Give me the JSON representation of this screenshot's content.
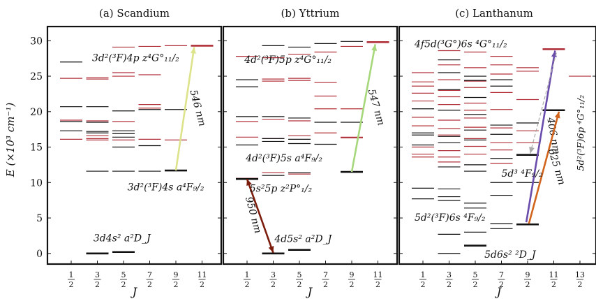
{
  "y_axis": {
    "label": "E (×10³ cm⁻¹)",
    "ticks": [
      "0",
      "5",
      "10",
      "15",
      "20",
      "25",
      "30"
    ],
    "range": [
      -1.5,
      32
    ]
  },
  "x_axis": {
    "label": "J",
    "ticks": [
      "1/2",
      "3/2",
      "5/2",
      "7/2",
      "9/2",
      "11/2",
      "13/2"
    ]
  },
  "colors": {
    "even": "#111111",
    "odd": "#b0303a"
  },
  "panels": [
    {
      "title": "(a) Scandium",
      "jcount": 6,
      "levels": {
        "black": [
          [
            1,
            27.0
          ],
          [
            1,
            20.7
          ],
          [
            3,
            20.7
          ],
          [
            5,
            20.1
          ],
          [
            7,
            20.3
          ],
          [
            9,
            20.3
          ],
          [
            1,
            18.6
          ],
          [
            3,
            18.5
          ],
          [
            1,
            17.3
          ],
          [
            3,
            17.2
          ],
          [
            3,
            17.0
          ],
          [
            5,
            17.3
          ],
          [
            5,
            16.9
          ],
          [
            5,
            16.4
          ],
          [
            5,
            15.0
          ],
          [
            7,
            15.2
          ],
          [
            3,
            11.6
          ],
          [
            5,
            11.6
          ],
          [
            7,
            11.6
          ],
          [
            9,
            11.7
          ],
          [
            3,
            0.0
          ],
          [
            5,
            0.2
          ]
        ],
        "red": [
          [
            1,
            24.7
          ],
          [
            3,
            24.8
          ],
          [
            3,
            24.6
          ],
          [
            5,
            25.5
          ],
          [
            5,
            25.0
          ],
          [
            7,
            25.2
          ],
          [
            7,
            29.2
          ],
          [
            9,
            29.3
          ],
          [
            5,
            29.1
          ],
          [
            1,
            18.8
          ],
          [
            3,
            18.7
          ],
          [
            5,
            18.6
          ],
          [
            7,
            21.0
          ],
          [
            7,
            20.5
          ],
          [
            1,
            16.1
          ],
          [
            3,
            16.2
          ],
          [
            3,
            16.0
          ],
          [
            5,
            16.0
          ],
          [
            7,
            16.1
          ],
          [
            9,
            16.0
          ],
          [
            3,
            16.6
          ]
        ],
        "bold": [
          [
            3,
            0.0
          ],
          [
            5,
            0.2
          ],
          [
            9,
            11.7
          ],
          [
            11,
            29.3
          ]
        ]
      },
      "labels": [
        {
          "text": "3d²(³F)4p  z⁴G°₁₁/₂",
          "E": 27.1,
          "J": 2.6
        },
        {
          "text": "3d²(³F)4s  a⁴F₉/₂",
          "E": 8.9,
          "J": 5.3
        },
        {
          "text": "3d4s²  a²D_J",
          "E": 1.7,
          "J": 2.7
        }
      ],
      "arrows": [
        {
          "from": [
            9.0,
            11.7
          ],
          "to": [
            10.4,
            29.1
          ],
          "color": "#dde38a",
          "label": "546 nm",
          "rotate": 75
        }
      ]
    },
    {
      "title": "(b) Yttrium",
      "jcount": 6,
      "levels": {
        "black": [
          [
            1,
            24.5
          ],
          [
            1,
            23.5
          ],
          [
            3,
            29.3
          ],
          [
            5,
            29.1
          ],
          [
            7,
            29.6
          ],
          [
            9,
            29.9
          ],
          [
            1,
            19.3
          ],
          [
            3,
            19.3
          ],
          [
            5,
            19.1
          ],
          [
            7,
            18.5
          ],
          [
            9,
            18.5
          ],
          [
            1,
            15.3
          ],
          [
            3,
            15.8
          ],
          [
            3,
            16.2
          ],
          [
            5,
            16.1
          ],
          [
            5,
            15.5
          ],
          [
            7,
            15.4
          ],
          [
            5,
            11.4
          ],
          [
            3,
            11.0
          ],
          [
            1,
            10.5
          ],
          [
            3,
            0.0
          ],
          [
            5,
            0.5
          ],
          [
            9,
            11.5
          ]
        ],
        "red": [
          [
            1,
            27.8
          ],
          [
            3,
            27.6
          ],
          [
            5,
            28.1
          ],
          [
            7,
            28.4
          ],
          [
            9,
            29.2
          ],
          [
            3,
            24.6
          ],
          [
            3,
            24.3
          ],
          [
            5,
            24.7
          ],
          [
            5,
            24.4
          ],
          [
            7,
            24.1
          ],
          [
            7,
            22.2
          ],
          [
            1,
            18.6
          ],
          [
            3,
            18.9
          ],
          [
            5,
            18.7
          ],
          [
            7,
            20.4
          ],
          [
            9,
            20.4
          ],
          [
            1,
            16.4
          ],
          [
            3,
            16.2
          ],
          [
            5,
            16.6
          ],
          [
            7,
            17.0
          ],
          [
            9,
            16.4
          ],
          [
            3,
            11.4
          ],
          [
            5,
            11.2
          ],
          [
            1,
            10.6
          ],
          [
            9,
            16.3
          ]
        ],
        "bold": [
          [
            1,
            10.5
          ],
          [
            3,
            0.0
          ],
          [
            5,
            0.5
          ],
          [
            9,
            11.5
          ],
          [
            11,
            29.8
          ]
        ]
      },
      "labels": [
        {
          "text": "4d²(³F)5p  z⁴G°₁₁/₂",
          "E": 26.9,
          "J": 0.8
        },
        {
          "text": "4d²(³F)5s  a⁴F₉/₂",
          "E": 13.0,
          "J": 0.9
        },
        {
          "text": "5s²5p  z²P°₁/₂",
          "E": 8.7,
          "J": 1.2
        },
        {
          "text": "4d5s²  a²D_J",
          "E": 1.6,
          "J": 3.1
        }
      ],
      "arrows": [
        {
          "from": [
            9.0,
            11.5
          ],
          "to": [
            10.8,
            29.5
          ],
          "color": "#a6d87b",
          "label": "547 nm",
          "rotate": 74
        },
        {
          "from": [
            1.0,
            10.5
          ],
          "to": [
            3.0,
            0.1
          ],
          "color": "#7b1c0c",
          "label": "950 nm",
          "rotate": 75,
          "double": true
        }
      ]
    },
    {
      "title": "(c) Lanthanum",
      "jcount": 7,
      "levels": {
        "black": [
          [
            1,
            20.4
          ],
          [
            1,
            17.0
          ],
          [
            1,
            16.7
          ],
          [
            1,
            15.3
          ],
          [
            1,
            9.2
          ],
          [
            1,
            7.7
          ],
          [
            3,
            27.3
          ],
          [
            3,
            25.5
          ],
          [
            3,
            20.2
          ],
          [
            3,
            16.5
          ],
          [
            3,
            15.6
          ],
          [
            3,
            12.2
          ],
          [
            3,
            9.1
          ],
          [
            3,
            8.0
          ],
          [
            3,
            7.5
          ],
          [
            3,
            2.7
          ],
          [
            3,
            0.0
          ],
          [
            5,
            25.0
          ],
          [
            5,
            24.4
          ],
          [
            5,
            22.0
          ],
          [
            5,
            19.6
          ],
          [
            5,
            17.4
          ],
          [
            5,
            16.0
          ],
          [
            5,
            12.5
          ],
          [
            5,
            11.6
          ],
          [
            5,
            7.1
          ],
          [
            5,
            6.4
          ],
          [
            5,
            3.0
          ],
          [
            5,
            1.1
          ],
          [
            7,
            24.5
          ],
          [
            7,
            23.6
          ],
          [
            7,
            18.1
          ],
          [
            7,
            16.8
          ],
          [
            7,
            13.4
          ],
          [
            7,
            10.0
          ],
          [
            7,
            8.2
          ],
          [
            7,
            4.2
          ],
          [
            7,
            3.5
          ],
          [
            9,
            18.4
          ],
          [
            9,
            13.9
          ],
          [
            9,
            10.0
          ],
          [
            9,
            4.1
          ],
          [
            3,
            23.1
          ]
        ],
        "red": [
          [
            1,
            25.5
          ],
          [
            1,
            24.2
          ],
          [
            1,
            23.6
          ],
          [
            1,
            22.6
          ],
          [
            1,
            21.5
          ],
          [
            1,
            19.2
          ],
          [
            1,
            18.0
          ],
          [
            1,
            15.0
          ],
          [
            1,
            14.0
          ],
          [
            1,
            13.6
          ],
          [
            3,
            28.6
          ],
          [
            3,
            26.6
          ],
          [
            3,
            24.5
          ],
          [
            3,
            23.0
          ],
          [
            3,
            22.1
          ],
          [
            3,
            21.0
          ],
          [
            3,
            18.8
          ],
          [
            3,
            17.6
          ],
          [
            3,
            16.7
          ],
          [
            3,
            14.5
          ],
          [
            3,
            13.6
          ],
          [
            3,
            12.9
          ],
          [
            5,
            28.4
          ],
          [
            5,
            26.2
          ],
          [
            5,
            24.3
          ],
          [
            5,
            23.4
          ],
          [
            5,
            21.2
          ],
          [
            5,
            20.2
          ],
          [
            5,
            19.1
          ],
          [
            5,
            17.8
          ],
          [
            5,
            16.2
          ],
          [
            5,
            15.1
          ],
          [
            5,
            14.0
          ],
          [
            7,
            27.8
          ],
          [
            7,
            26.6
          ],
          [
            7,
            25.3
          ],
          [
            7,
            22.7
          ],
          [
            7,
            20.3
          ],
          [
            7,
            17.7
          ],
          [
            7,
            15.6
          ],
          [
            7,
            14.6
          ],
          [
            7,
            12.7
          ],
          [
            9,
            26.2
          ],
          [
            9,
            25.7
          ],
          [
            9,
            21.7
          ],
          [
            9,
            17.3
          ],
          [
            9,
            15.6
          ],
          [
            9,
            13.9
          ],
          [
            11,
            28.8
          ],
          [
            11,
            20.2
          ],
          [
            13,
            25.0
          ]
        ],
        "bold": [
          [
            5,
            1.1
          ],
          [
            9,
            4.1
          ],
          [
            9,
            13.9
          ],
          [
            11,
            28.8
          ],
          [
            11,
            20.2
          ]
        ]
      },
      "labels": [
        {
          "text": "4f5d(³G°)6s  ⁴G°₁₁/₂",
          "E": 29.1,
          "J": 0.0
        },
        {
          "text": "5d³ ⁴F₉/₂",
          "E": 10.8,
          "J": 7.0
        },
        {
          "text": "5d²(³F)6s  ⁴F₉/₂",
          "E": 4.6,
          "J": 0.0
        },
        {
          "text": "5d6s²  ²D_J",
          "E": -0.6,
          "J": 5.7
        }
      ],
      "arrows": [
        {
          "from": [
            8.9,
            4.4
          ],
          "to": [
            11.1,
            28.6
          ],
          "color": "#6a4cac",
          "label": "406 nm",
          "rotate": 80
        },
        {
          "from": [
            9.1,
            4.2
          ],
          "to": [
            11.4,
            20.0
          ],
          "color": "#d2651e",
          "label": "625 nm",
          "rotate": 73
        },
        {
          "from": [
            11.2,
            28.3
          ],
          "to": [
            9.2,
            14.1
          ],
          "color": "#aaaaaa",
          "dashed": true,
          "label": ""
        }
      ],
      "extra_label": {
        "text": "5d²(³F)6p  ⁴G°₁₁/₂",
        "E": 17.0,
        "J": 13.3,
        "rotate": -90
      }
    }
  ]
}
